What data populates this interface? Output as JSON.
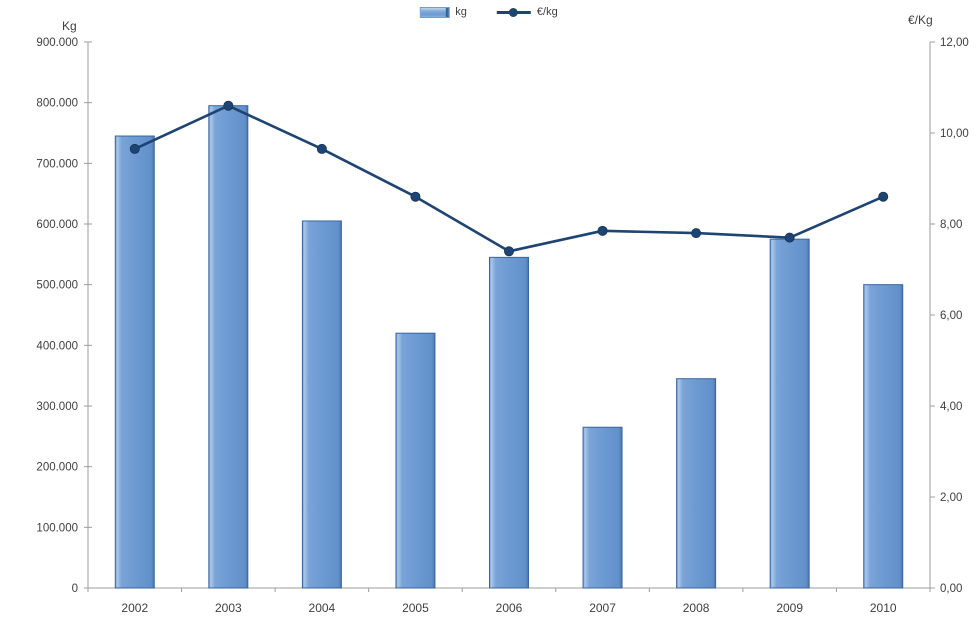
{
  "chart_data": {
    "type": "bar",
    "subtype": "bar+line combo",
    "categories": [
      "2002",
      "2003",
      "2004",
      "2005",
      "2006",
      "2007",
      "2008",
      "2009",
      "2010"
    ],
    "series": [
      {
        "name": "kg",
        "type": "bar",
        "axis": "left",
        "values": [
          745000,
          795000,
          605000,
          420000,
          545000,
          265000,
          345000,
          575000,
          500000
        ]
      },
      {
        "name": "€/kg",
        "type": "line",
        "axis": "right",
        "values": [
          9.65,
          10.6,
          9.65,
          8.6,
          7.4,
          7.85,
          7.8,
          7.7,
          8.6
        ]
      }
    ],
    "legend": [
      "kg",
      "€/kg"
    ],
    "legend_position": "top-center",
    "left_axis": {
      "title": "Kg",
      "min": 0,
      "max": 900000,
      "tick_step": 100000,
      "tick_labels": [
        "0",
        "100.000",
        "200.000",
        "300.000",
        "400.000",
        "500.000",
        "600.000",
        "700.000",
        "800.000",
        "900.000"
      ]
    },
    "right_axis": {
      "title": "€/Kg",
      "min": 0,
      "max": 12,
      "tick_step": 2,
      "tick_labels": [
        "0,00",
        "2,00",
        "4,00",
        "6,00",
        "8,00",
        "10,00",
        "12,00"
      ]
    },
    "grid": "off",
    "colors": {
      "bar_fill": "#6d9ad2",
      "bar_fill_light": "#aac7e8",
      "bar_fill_dark": "#4a76ad",
      "bar_border": "#3a669f",
      "line": "#1d4472",
      "axis": "#9c9c9c",
      "text": "#3f3f3f",
      "background": "#ffffff"
    }
  }
}
